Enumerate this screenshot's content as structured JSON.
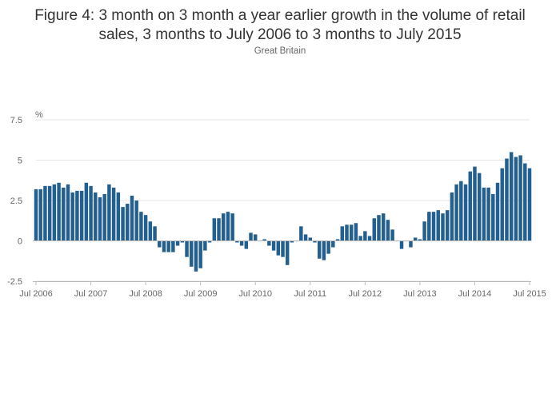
{
  "title_line1": "Figure 4: 3 month on 3 month a year earlier growth in the volume of retail",
  "title_line2": "sales, 3 months to July 2006 to 3 months to July 2015",
  "subtitle": "Great Britain",
  "colors": {
    "bar": "#24608f",
    "grid": "#e6e6e6",
    "axis": "#bbbbbb",
    "text": "#666666"
  },
  "chart_data": {
    "type": "bar",
    "title": "Figure 4: 3 month on 3 month a year earlier growth in the volume of retail sales, 3 months to July 2006 to 3 months to July 2015",
    "subtitle": "Great Britain",
    "ylabel": "%",
    "xlabel": "",
    "ylim": [
      -2.5,
      7.5
    ],
    "yticks": [
      -2.5,
      0,
      2.5,
      5,
      7.5
    ],
    "ytick_labels": [
      "-2.5",
      "0",
      "2.5",
      "5",
      "7.5"
    ],
    "xtick_labels": [
      "Jul 2006",
      "Jul 2007",
      "Jul 2008",
      "Jul 2009",
      "Jul 2010",
      "Jul 2011",
      "Jul 2012",
      "Jul 2013",
      "Jul 2014",
      "Jul 2015"
    ],
    "xtick_month_index": [
      0,
      12,
      24,
      36,
      48,
      60,
      72,
      84,
      96,
      108
    ],
    "start": "Jul 2006",
    "end": "Jul 2015",
    "grid": true,
    "legend": "none",
    "series": [
      {
        "name": "3 month on 3 month a year earlier growth",
        "values": [
          3.2,
          3.2,
          3.4,
          3.4,
          3.5,
          3.6,
          3.3,
          3.5,
          3.0,
          3.1,
          3.1,
          3.6,
          3.4,
          3.0,
          2.7,
          2.9,
          3.5,
          3.3,
          3.0,
          2.1,
          2.3,
          2.8,
          2.5,
          1.8,
          1.6,
          1.2,
          0.9,
          -0.4,
          -0.7,
          -0.7,
          -0.7,
          -0.3,
          -0.1,
          -1.0,
          -1.6,
          -1.9,
          -1.7,
          -0.6,
          -0.1,
          1.4,
          1.4,
          1.7,
          1.8,
          1.7,
          -0.1,
          -0.3,
          -0.5,
          0.5,
          0.4,
          0.0,
          0.1,
          -0.3,
          -0.6,
          -0.9,
          -1.0,
          -1.5,
          -0.1,
          0.0,
          0.9,
          0.4,
          0.2,
          -0.1,
          -1.1,
          -1.2,
          -0.8,
          -0.4,
          0.1,
          0.9,
          1.0,
          1.0,
          1.1,
          0.3,
          0.6,
          0.3,
          1.4,
          1.6,
          1.7,
          1.3,
          0.7,
          0.0,
          -0.5,
          0.0,
          -0.4,
          0.2,
          0.1,
          1.2,
          1.8,
          1.8,
          1.9,
          1.7,
          1.9,
          3.0,
          3.5,
          3.7,
          3.5,
          4.3,
          4.6,
          4.2,
          3.3,
          3.3,
          2.9,
          3.6,
          4.5,
          5.1,
          5.5,
          5.2,
          5.3,
          4.8,
          4.5
        ]
      }
    ]
  }
}
